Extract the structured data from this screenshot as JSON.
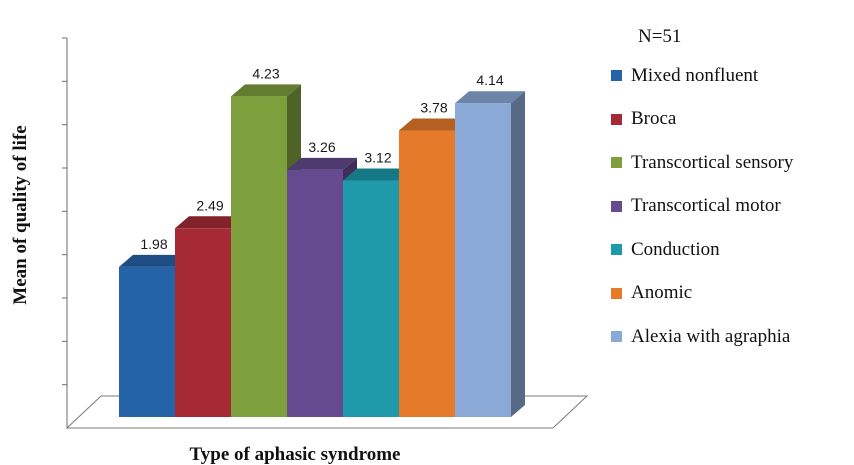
{
  "chart_data": {
    "type": "bar",
    "xlabel": "Type of aphasic syndrome",
    "ylabel": "Mean of quality of life",
    "ylim": [
      0,
      5
    ],
    "grid": false,
    "legend_position": "right",
    "legend_title": "N=51",
    "series": [
      {
        "name": "Mixed nonfluent",
        "value": 1.98,
        "label": "1.98",
        "color": "#2563a8"
      },
      {
        "name": "Broca",
        "value": 2.49,
        "label": "2.49",
        "color": "#a52a35"
      },
      {
        "name": "Transcortical sensory",
        "value": 4.23,
        "label": "4.23",
        "color": "#7da03c"
      },
      {
        "name": "Transcortical motor",
        "value": 3.26,
        "label": "3.26",
        "color": "#654a90"
      },
      {
        "name": "Conduction",
        "value": 3.12,
        "label": "3.12",
        "color": "#1e9aab"
      },
      {
        "name": "Anomic",
        "value": 3.78,
        "label": "3.78",
        "color": "#e57b2a"
      },
      {
        "name": "Alexia with agraphia",
        "value": 4.14,
        "label": "4.14",
        "color": "#8aa9d6"
      }
    ]
  }
}
